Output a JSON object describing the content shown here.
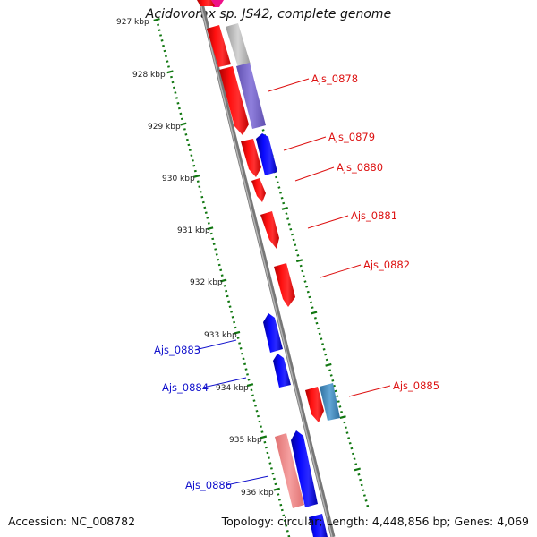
{
  "title": "Acidovorax sp. JS42, complete genome",
  "footer": {
    "accession": "Accession: NC_008782",
    "summary": "Topology: circular; Length: 4,448,856 bp; Genes: 4,069"
  },
  "ruler": {
    "tick_labels": [
      "927 kbp",
      "928 kbp",
      "929 kbp",
      "930 kbp",
      "931 kbp",
      "932 kbp",
      "933 kbp",
      "934 kbp",
      "935 kbp",
      "936 kbp"
    ]
  },
  "genes": [
    {
      "name": "Ajs_0878",
      "color": "#dd1111"
    },
    {
      "name": "Ajs_0879",
      "color": "#dd1111"
    },
    {
      "name": "Ajs_0880",
      "color": "#dd1111"
    },
    {
      "name": "Ajs_0881",
      "color": "#dd1111"
    },
    {
      "name": "Ajs_0882",
      "color": "#dd1111"
    },
    {
      "name": "Ajs_0883",
      "color": "#1111cc"
    },
    {
      "name": "Ajs_0884",
      "color": "#1111cc"
    },
    {
      "name": "Ajs_0885",
      "color": "#dd1111"
    },
    {
      "name": "Ajs_0886",
      "color": "#1111cc"
    }
  ],
  "colors": {
    "forward_strand": "#ff0000",
    "reverse_strand": "#0000ee",
    "ruler_ticks": "#117711",
    "backbone": "#888888",
    "feature_light_red": "#f08a8a",
    "feature_purple": "#8070cc",
    "feature_steel_blue": "#4a8fc0",
    "feature_grey": "#bbbbbb"
  }
}
